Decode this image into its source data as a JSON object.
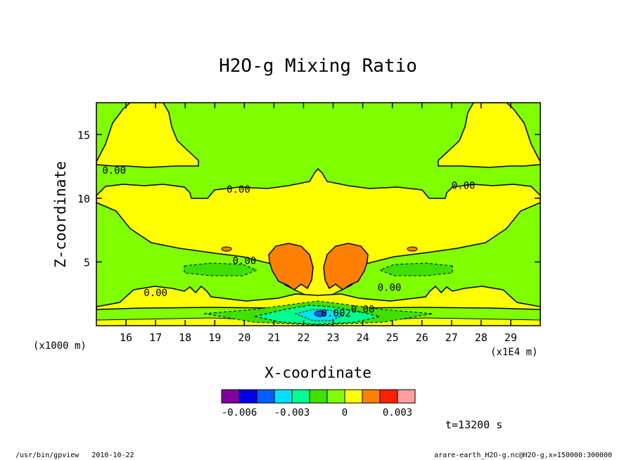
{
  "chart_data": {
    "type": "heatmap",
    "title": "H2O-g Mixing Ratio",
    "xlabel": "X-coordinate",
    "ylabel": "Z-coordinate",
    "x_unit_left": "(x1000 m)",
    "x_unit_right": "(x1E4 m)",
    "xlim": [
      15.0,
      30.0
    ],
    "ylim": [
      0,
      17.5
    ],
    "xticks": [
      16,
      17,
      18,
      19,
      20,
      21,
      22,
      23,
      24,
      25,
      26,
      27,
      28,
      29
    ],
    "yticks": [
      5,
      10,
      15
    ],
    "contour_labels": [
      {
        "text": "0.00",
        "x": 15.6,
        "z": 12.2
      },
      {
        "text": "0.00",
        "x": 19.8,
        "z": 10.7
      },
      {
        "text": "0.00",
        "x": 27.4,
        "z": 11.0
      },
      {
        "text": "0.00",
        "x": 20.0,
        "z": 5.1
      },
      {
        "text": "0.00",
        "x": 17.0,
        "z": 2.6
      },
      {
        "text": "0.00",
        "x": 24.9,
        "z": 3.0
      },
      {
        "text": "0.00",
        "x": 24.0,
        "z": 1.3
      },
      {
        "text": "0.002",
        "x": 23.1,
        "z": 1.0
      }
    ],
    "colorbar": {
      "colors": [
        "#8000a0",
        "#0000e0",
        "#0060ff",
        "#00e0ff",
        "#00ff90",
        "#40e000",
        "#80ff00",
        "#ffff00",
        "#ff8000",
        "#ff2000",
        "#ffa0a0"
      ],
      "tick_labels": [
        "-0.006",
        "-0.003",
        "0",
        "0.003"
      ]
    },
    "time_label": "t=13200 s"
  },
  "footer": {
    "left": "/usr/bin/gpview   2010-10-22",
    "right": "arare-earth_H2O-g.nc@H2O-g,x=150000:300000"
  }
}
